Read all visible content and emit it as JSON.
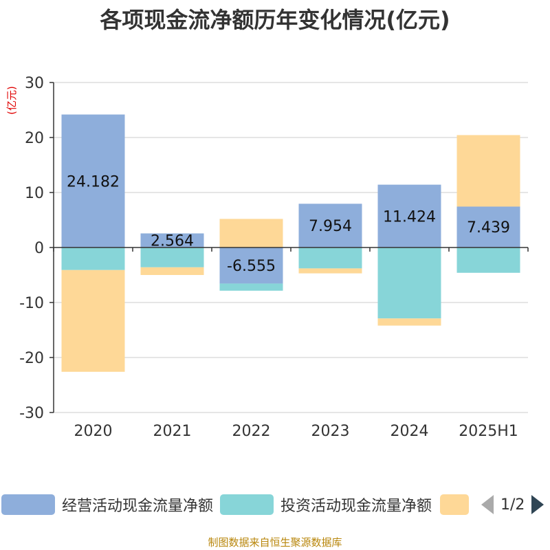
{
  "title": "各项现金流净额历年变化情况(亿元)",
  "footer": "制图数据来自恒生聚源数据库",
  "legend": {
    "items": [
      {
        "label": "经营活动现金流量净额",
        "color": "#8eaedb"
      },
      {
        "label": "投资活动现金流量净额",
        "color": "#87d5d8"
      },
      {
        "label": "",
        "color": "#fed897"
      }
    ],
    "page_indicator": "1/2"
  },
  "chart_data": {
    "type": "bar",
    "stacked": true,
    "categories": [
      "2020",
      "2021",
      "2022",
      "2023",
      "2024",
      "2025H1"
    ],
    "ylabel": "(亿元)",
    "ylim": [
      -30,
      30
    ],
    "yticks": [
      30,
      20,
      10,
      0,
      -10,
      -20,
      -30
    ],
    "grid": true,
    "series": [
      {
        "name": "经营活动现金流量净额",
        "color": "#8eaedb",
        "values": [
          24.182,
          2.564,
          -6.555,
          7.954,
          11.424,
          7.439
        ],
        "labels": [
          "24.182",
          "2.564",
          "-6.555",
          "7.954",
          "11.424",
          "7.439"
        ]
      },
      {
        "name": "投资活动现金流量净额",
        "color": "#87d5d8",
        "values": [
          -4.1,
          -3.6,
          -1.3,
          -3.8,
          -12.9,
          -4.6
        ]
      },
      {
        "color": "#fed897",
        "values": [
          -18.5,
          -1.4,
          5.2,
          -0.9,
          -1.3,
          13.0
        ]
      }
    ]
  }
}
